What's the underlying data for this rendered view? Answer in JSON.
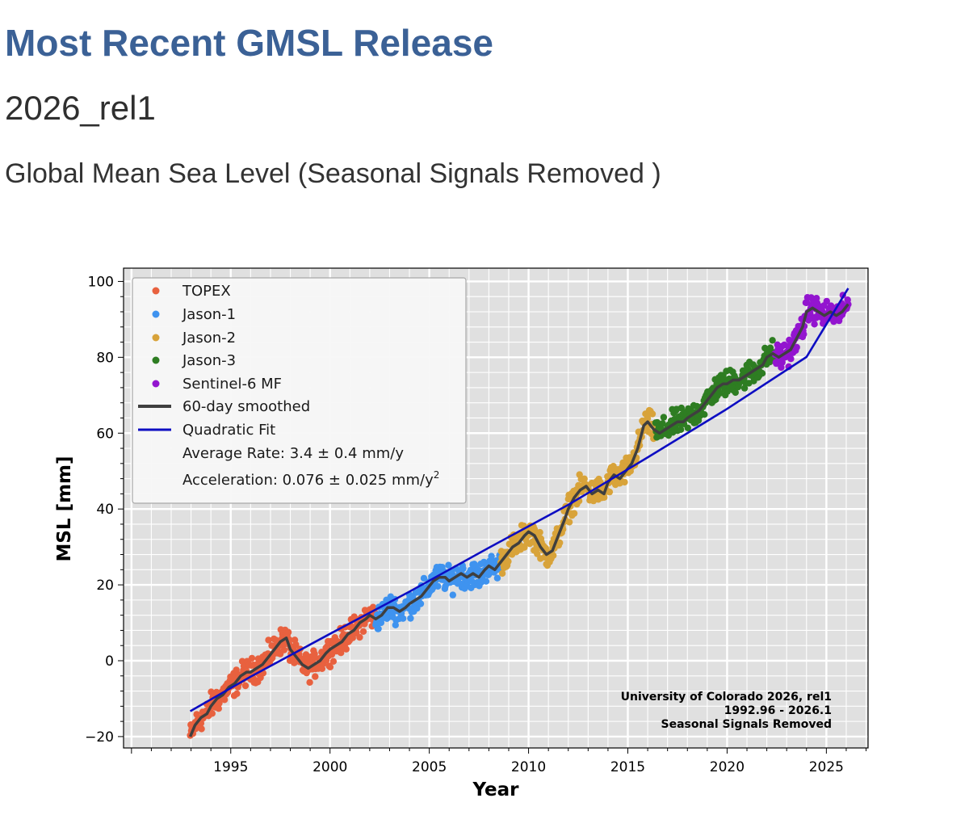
{
  "header": {
    "title": "Most Recent GMSL Release",
    "release": "2026_rel1",
    "subtitle": "Global Mean Sea Level (Seasonal Signals Removed )"
  },
  "chart_data": {
    "type": "scatter",
    "title": "",
    "xlabel": "Year",
    "ylabel": "MSL [mm]",
    "xlim": [
      1989.6,
      2027.1
    ],
    "ylim": [
      -23,
      103.5
    ],
    "xticks": [
      1995,
      2000,
      2005,
      2010,
      2015,
      2020,
      2025
    ],
    "yticks": [
      -20,
      0,
      20,
      40,
      60,
      80,
      100
    ],
    "grid": true,
    "legend_position": "top-left",
    "colors": {
      "TOPEX": "#e8613f",
      "Jason-1": "#3f93ef",
      "Jason-2": "#d8a33a",
      "Jason-3": "#2e7d22",
      "Sentinel-6 MF": "#9315cf",
      "smoothed": "#3f3f3f",
      "fit": "#0d0dc2",
      "plot_bg": "#e0e0e0"
    },
    "legend": {
      "topex": "TOPEX",
      "jason1": "Jason-1",
      "jason2": "Jason-2",
      "jason3": "Jason-3",
      "sentinel": "Sentinel-6 MF",
      "smoothed": "60-day smoothed",
      "fit": "Quadratic Fit",
      "rate": "Average Rate: 3.4 ± 0.4 mm/y",
      "accel": "Acceleration: 0.076 ± 0.025 mm/y",
      "accel_sup": "2"
    },
    "annotation": [
      "University of Colorado 2026, rel1",
      "1992.96 - 2026.1",
      "Seasonal Signals Removed"
    ],
    "smoothed": {
      "x": [
        1992.96,
        1993.2,
        1993.5,
        1993.8,
        1994.0,
        1994.3,
        1994.6,
        1994.9,
        1995.2,
        1995.5,
        1995.8,
        1996.0,
        1996.3,
        1996.6,
        1996.9,
        1997.2,
        1997.5,
        1997.8,
        1998.0,
        1998.3,
        1998.6,
        1998.9,
        1999.2,
        1999.5,
        1999.8,
        2000.0,
        2000.3,
        2000.6,
        2000.9,
        2001.2,
        2001.5,
        2001.8,
        2002.0,
        2002.3,
        2002.6,
        2002.9,
        2003.2,
        2003.5,
        2003.8,
        2004.0,
        2004.3,
        2004.6,
        2004.9,
        2005.2,
        2005.5,
        2005.8,
        2006.0,
        2006.3,
        2006.6,
        2006.9,
        2007.2,
        2007.5,
        2007.8,
        2008.0,
        2008.3,
        2008.6,
        2008.9,
        2009.2,
        2009.5,
        2009.8,
        2010.0,
        2010.3,
        2010.6,
        2010.9,
        2011.2,
        2011.5,
        2011.8,
        2012.0,
        2012.3,
        2012.6,
        2012.9,
        2013.2,
        2013.5,
        2013.8,
        2014.0,
        2014.3,
        2014.6,
        2014.9,
        2015.2,
        2015.5,
        2015.8,
        2016.0,
        2016.3,
        2016.6,
        2016.9,
        2017.2,
        2017.5,
        2017.8,
        2018.0,
        2018.3,
        2018.6,
        2018.9,
        2019.2,
        2019.5,
        2019.8,
        2020.0,
        2020.3,
        2020.6,
        2020.9,
        2021.2,
        2021.5,
        2021.8,
        2022.0,
        2022.3,
        2022.6,
        2022.9,
        2023.2,
        2023.5,
        2023.8,
        2024.0,
        2024.3,
        2024.6,
        2024.9,
        2025.2,
        2025.5,
        2025.8,
        2026.1
      ],
      "y": [
        -20,
        -17,
        -15,
        -14,
        -12,
        -10,
        -9,
        -7,
        -6,
        -4,
        -3,
        -3,
        -2,
        -1,
        1,
        3,
        5,
        6,
        3,
        1,
        -1,
        -2,
        -1,
        0,
        2,
        3,
        4,
        5,
        7,
        8,
        10,
        11,
        12,
        11,
        12,
        14,
        14,
        13,
        14,
        15,
        16,
        17,
        19,
        21,
        22,
        22,
        21,
        22,
        23,
        22,
        23,
        22,
        24,
        25,
        24,
        26,
        28,
        30,
        31,
        33,
        34,
        33,
        30,
        28,
        29,
        33,
        37,
        40,
        43,
        45,
        46,
        44,
        45,
        44,
        47,
        49,
        48,
        50,
        52,
        56,
        62,
        63,
        61,
        60,
        61,
        62,
        63,
        63,
        64,
        65,
        66,
        68,
        70,
        72,
        73,
        73,
        74,
        74,
        75,
        76,
        77,
        78,
        80,
        81,
        80,
        81,
        82,
        85,
        88,
        92,
        93,
        92,
        91,
        92,
        91,
        92,
        94
      ]
    },
    "fit": {
      "x": [
        1992.96,
        1996,
        2000,
        2004,
        2008,
        2012,
        2016,
        2020,
        2024,
        2026.1
      ],
      "y": [
        -13.3,
        -4.2,
        7.1,
        18.2,
        29.8,
        41.1,
        53.6,
        66.4,
        80.1,
        98.2
      ]
    }
  }
}
